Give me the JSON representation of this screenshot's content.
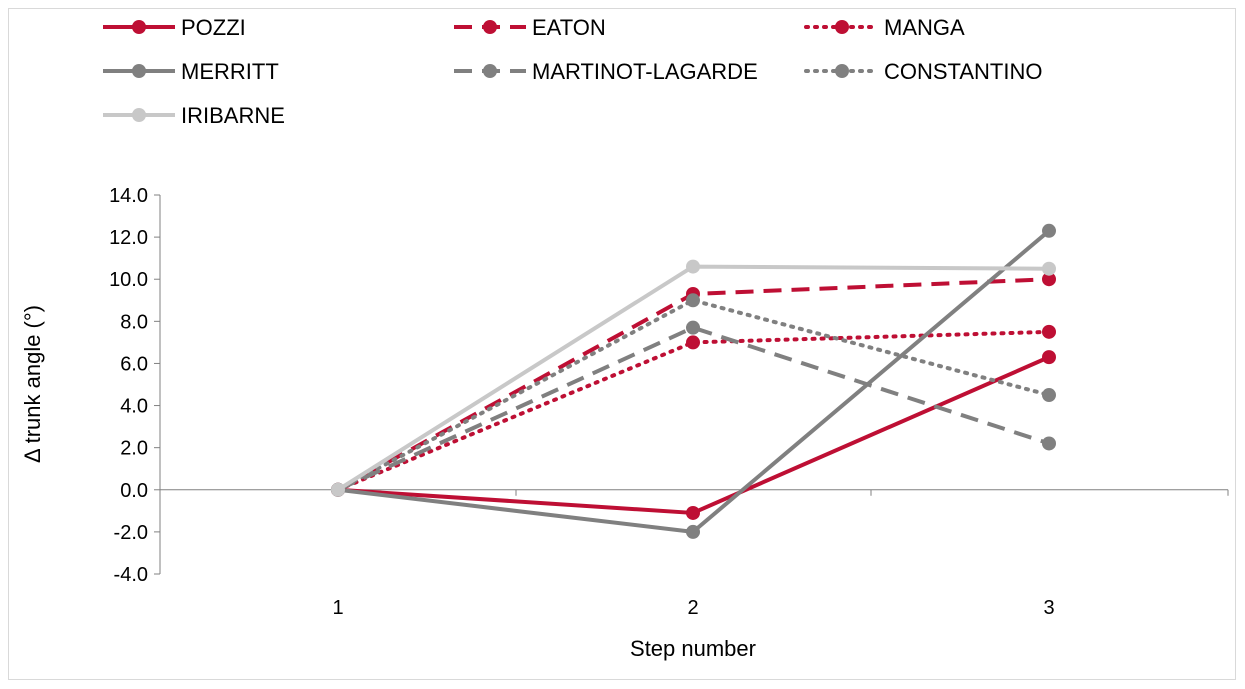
{
  "chart_data": {
    "type": "line",
    "title": "",
    "xlabel": "Step number",
    "ylabel": "Δ trunk angle (°)",
    "x": [
      1,
      2,
      3
    ],
    "x_tick_labels": [
      "1",
      "2",
      "3"
    ],
    "ylim": [
      -4.0,
      14.0
    ],
    "y_ticks": [
      -4.0,
      -2.0,
      0.0,
      2.0,
      4.0,
      6.0,
      8.0,
      10.0,
      12.0,
      14.0
    ],
    "y_tick_labels": [
      "-4.0",
      "-2.0",
      "0.0",
      "2.0",
      "4.0",
      "6.0",
      "8.0",
      "10.0",
      "12.0",
      "14.0"
    ],
    "grid": false,
    "legend_position": "top",
    "series": [
      {
        "name": "POZZI",
        "values": [
          0.0,
          -1.1,
          6.3
        ],
        "color": "#be0f34",
        "dash": "solid"
      },
      {
        "name": "EATON",
        "values": [
          0.0,
          9.3,
          10.0
        ],
        "color": "#be0f34",
        "dash": "dash"
      },
      {
        "name": "MANGA",
        "values": [
          0.0,
          7.0,
          7.5
        ],
        "color": "#be0f34",
        "dash": "dot"
      },
      {
        "name": "MERRITT",
        "values": [
          0.0,
          -2.0,
          12.3
        ],
        "color": "#808080",
        "dash": "solid"
      },
      {
        "name": "MARTINOT-LAGARDE",
        "values": [
          0.0,
          7.7,
          2.2
        ],
        "color": "#808080",
        "dash": "dash"
      },
      {
        "name": "CONSTANTINO",
        "values": [
          0.0,
          9.0,
          4.5
        ],
        "color": "#808080",
        "dash": "dot"
      },
      {
        "name": "IRIBARNE",
        "values": [
          0.0,
          10.6,
          10.5
        ],
        "color": "#c8c8c8",
        "dash": "solid"
      }
    ]
  }
}
